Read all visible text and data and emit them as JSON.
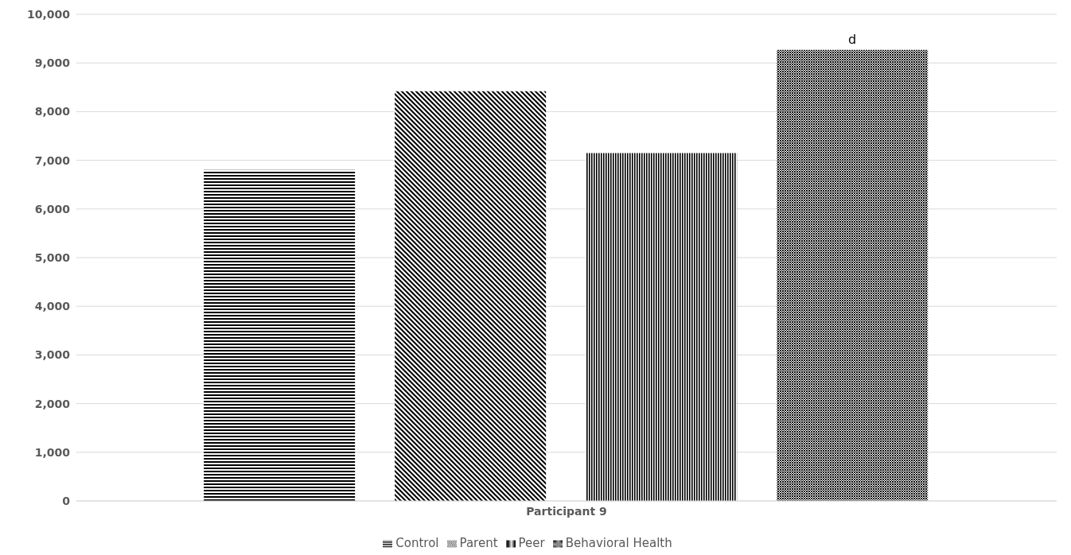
{
  "chart_data": {
    "type": "bar",
    "categories": [
      "Participant 9"
    ],
    "series": [
      {
        "name": "Control",
        "color": "#000000",
        "values": [
          6800
        ]
      },
      {
        "name": "Parent",
        "color": "#000000",
        "values": [
          8420
        ]
      },
      {
        "name": "Peer",
        "color": "#000000",
        "values": [
          7150
        ]
      },
      {
        "name": "Behavioral Health",
        "color": "#000000",
        "values": [
          9270
        ]
      }
    ],
    "ylim": [
      0,
      10000
    ],
    "yticks": [
      0,
      {
        "value": 1000,
        "label": "1,000"
      },
      {
        "value": 2000,
        "label": "2,000"
      },
      {
        "value": 3000,
        "label": "3,000"
      },
      {
        "value": 4000,
        "label": "4,000"
      },
      {
        "value": 5000,
        "label": "5,000"
      },
      {
        "value": 6000,
        "label": "6,000"
      },
      {
        "value": 7000,
        "label": "7,000"
      },
      {
        "value": 8000,
        "label": "8,000"
      },
      {
        "value": 9000,
        "label": "9,000"
      },
      {
        "value": 10000,
        "label": "10,000"
      }
    ],
    "grid": "y",
    "legend": "bottom",
    "annotations": [
      "d"
    ]
  }
}
